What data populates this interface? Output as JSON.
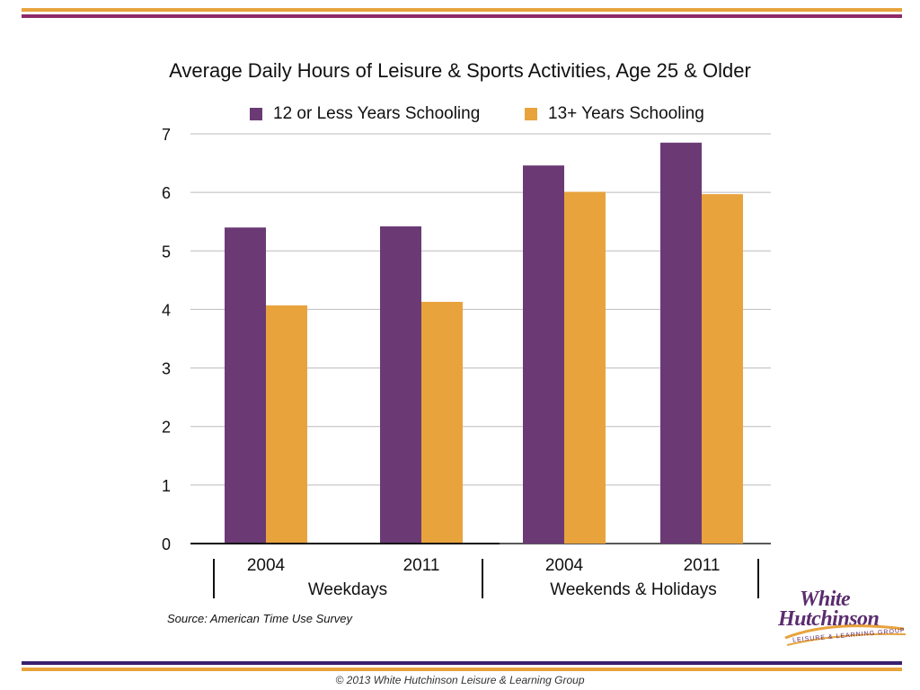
{
  "colors": {
    "purple": "#6b3a75",
    "orange": "#e8a33d",
    "rule_orange": "#e8a33d",
    "rule_purple": "#8e2a6a",
    "rule_indigo": "#3a1f6e"
  },
  "chart_data": {
    "type": "bar",
    "title": "Average Daily Hours of Leisure & Sports Activities, Age 25 & Older",
    "categories": [
      "2004",
      "2011",
      "2004",
      "2011"
    ],
    "groups": [
      {
        "label": "Weekdays",
        "categories": [
          "2004",
          "2011"
        ]
      },
      {
        "label": "Weekends & Holidays",
        "categories": [
          "2004",
          "2011"
        ]
      }
    ],
    "series": [
      {
        "name": "12 or Less Years Schooling",
        "color": "#6b3a75",
        "values": [
          5.4,
          5.42,
          6.46,
          6.85
        ]
      },
      {
        "name": "13+ Years Schooling",
        "color": "#e8a33d",
        "values": [
          4.07,
          4.13,
          6.01,
          5.97
        ]
      }
    ],
    "yticks": [
      "0",
      "1",
      "2",
      "3",
      "4",
      "5",
      "6",
      "7"
    ],
    "ylim": [
      0,
      7
    ],
    "grid": true,
    "legend": "top"
  },
  "source": "Source: American Time Use Survey",
  "footer": "© 2013 White Hutchinson Leisure & Learning Group",
  "logo": {
    "line1": "White",
    "line2": "Hutchinson",
    "tagline": "LEISURE & LEARNING GROUP"
  }
}
